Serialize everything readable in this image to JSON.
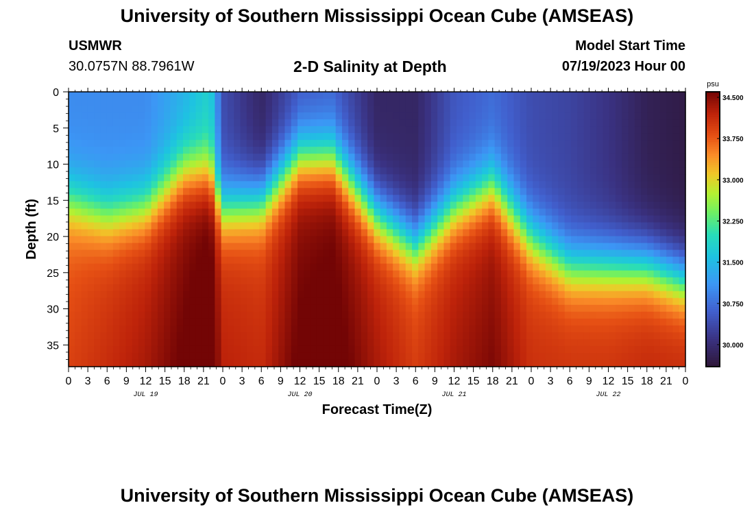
{
  "header": {
    "title": "University of Southern Mississippi Ocean Cube (AMSEAS)",
    "station": "USMWR",
    "coords": "30.0757N  88.7961W",
    "plot_title": "2-D Salinity at Depth",
    "model_start_label": "Model Start Time",
    "model_start_value": "07/19/2023 Hour 00"
  },
  "footer": {
    "title": "University of Southern Mississippi Ocean Cube (AMSEAS)"
  },
  "chart_data": {
    "type": "heatmap",
    "title": "2-D Salinity at Depth",
    "xlabel": "Forecast Time(Z)",
    "ylabel": "Depth (ft)",
    "x_hours_range": [
      0,
      96
    ],
    "x_tick_step_hours": 3,
    "x_tick_labels": [
      "0",
      "3",
      "6",
      "9",
      "12",
      "15",
      "18",
      "21",
      "0",
      "3",
      "6",
      "9",
      "12",
      "15",
      "18",
      "21",
      "0",
      "3",
      "6",
      "9",
      "12",
      "15",
      "18",
      "21",
      "0",
      "3",
      "6",
      "9",
      "12",
      "15",
      "18",
      "21",
      "0"
    ],
    "date_labels": [
      {
        "hour": 12,
        "label": "JUL 19"
      },
      {
        "hour": 36,
        "label": "JUL 20"
      },
      {
        "hour": 60,
        "label": "JUL 21"
      },
      {
        "hour": 84,
        "label": "JUL 22"
      }
    ],
    "y_range": [
      0,
      38
    ],
    "y_ticks": [
      0,
      5,
      10,
      15,
      20,
      25,
      30,
      35
    ],
    "colorbar": {
      "unit": "psu",
      "min": 29.6,
      "max": 34.6,
      "ticks": [
        "34.500",
        "33.750",
        "33.000",
        "32.250",
        "31.500",
        "30.750",
        "30.000"
      ],
      "tick_values": [
        34.5,
        33.75,
        33.0,
        32.25,
        31.5,
        30.75,
        30.0
      ]
    },
    "field": {
      "description": "Halocline: fresh (≈29.8–31 psu) surface layer over saline (≈33.5–34.5 psu) bottom water",
      "time_hours": [
        0,
        6,
        12,
        18,
        22,
        24,
        30,
        36,
        41,
        48,
        54,
        60,
        66,
        72,
        78,
        84,
        90,
        96
      ],
      "halocline_depth_ft": [
        15,
        17,
        16,
        11,
        11,
        16,
        15,
        9,
        9,
        17,
        21,
        16,
        13,
        20,
        24,
        24,
        24,
        26
      ],
      "surface_psu": [
        31.0,
        31.0,
        31.0,
        31.4,
        31.8,
        30.4,
        29.9,
        30.5,
        30.6,
        29.9,
        29.9,
        30.5,
        30.7,
        30.4,
        30.3,
        30.1,
        29.8,
        29.7
      ],
      "bottom_psu": [
        33.7,
        33.9,
        34.1,
        34.4,
        34.6,
        34.0,
        33.9,
        34.4,
        34.5,
        34.1,
        33.8,
        34.1,
        34.3,
        33.9,
        33.9,
        33.9,
        34.0,
        34.0
      ]
    }
  }
}
